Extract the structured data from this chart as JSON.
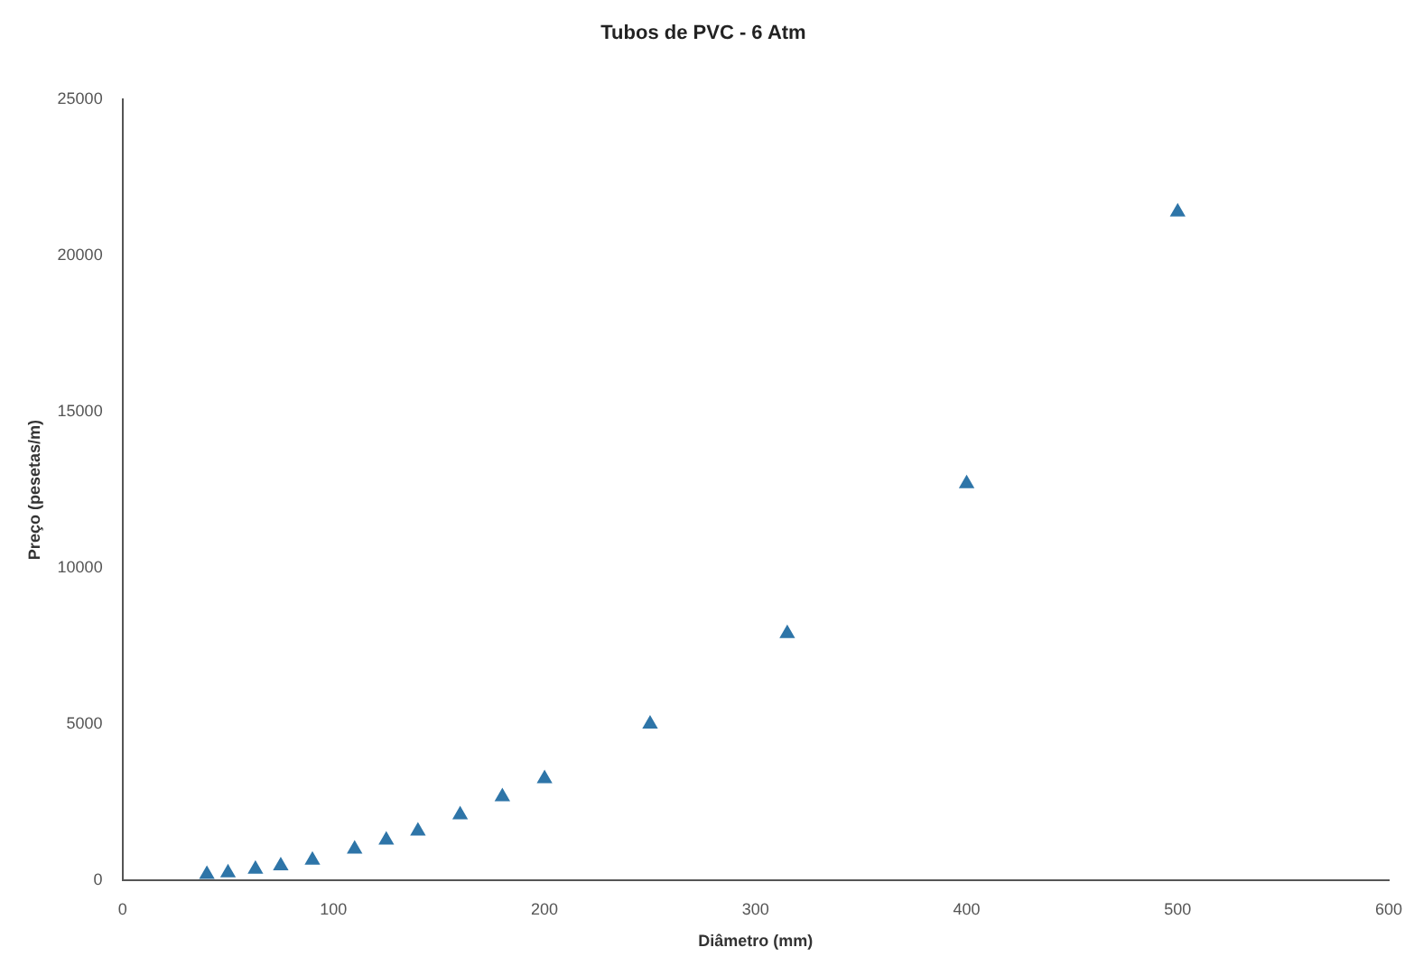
{
  "chart_data": {
    "type": "scatter",
    "title": "Tubos de PVC - 6 Atm",
    "xlabel": "Diâmetro (mm)",
    "ylabel": "Preço (pesetas/m)",
    "x": [
      40,
      50,
      63,
      75,
      90,
      110,
      125,
      140,
      160,
      180,
      200,
      250,
      315,
      400,
      500
    ],
    "series": [
      {
        "color": "#2e75a8",
        "values": [
          180,
          230,
          350,
          460,
          640,
          990,
          1280,
          1570,
          2090,
          2670,
          3250,
          5000,
          7900,
          12700,
          21400
        ]
      }
    ],
    "xlim": [
      0,
      600
    ],
    "xticks": [
      0,
      100,
      200,
      300,
      400,
      500,
      600
    ],
    "ylim": [
      0,
      25000
    ],
    "yticks": [
      0,
      5000,
      10000,
      15000,
      20000,
      25000
    ],
    "grid": false,
    "legend": false,
    "marker": "triangle"
  }
}
